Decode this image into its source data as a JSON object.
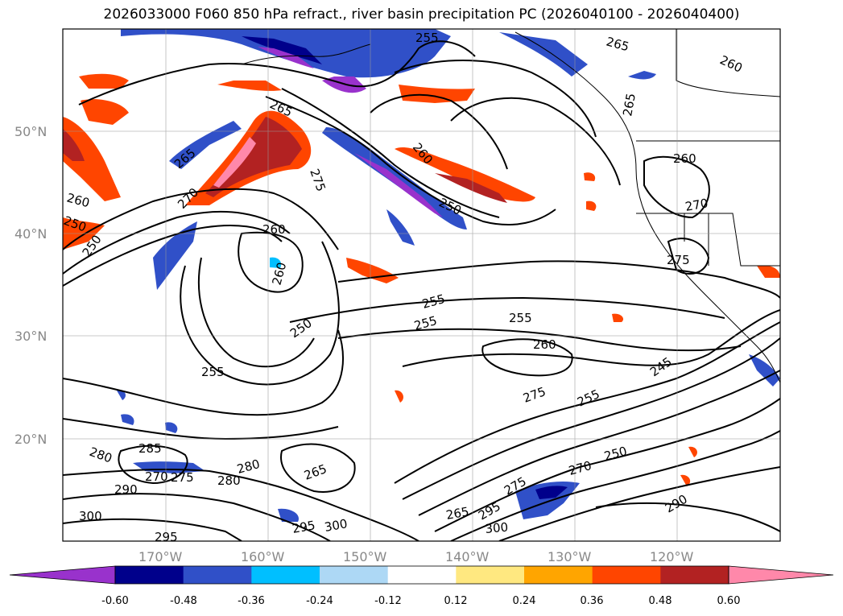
{
  "title": "2026033000 F060 850 hPa refract., river basin precipitation PC (2026040100 - 2026040400)",
  "lat_ticks": [
    "50°N",
    "40°N",
    "30°N",
    "20°N"
  ],
  "lon_ticks": [
    "170°W",
    "160°W",
    "150°W",
    "140°W",
    "130°W",
    "120°W"
  ],
  "contour_labels": [
    "255",
    "265",
    "260",
    "265",
    "265",
    "270",
    "275",
    "260",
    "250",
    "260",
    "250",
    "265",
    "260",
    "270",
    "275",
    "260",
    "255",
    "255",
    "255",
    "260",
    "250",
    "255",
    "245",
    "275",
    "255",
    "285",
    "280",
    "280",
    "290",
    "270",
    "275",
    "280",
    "265",
    "295",
    "300",
    "265",
    "295",
    "300",
    "270",
    "250",
    "290",
    "300",
    "295",
    "260",
    "250",
    "275"
  ],
  "colorbar": {
    "ticks": [
      "-0.60",
      "-0.48",
      "-0.36",
      "-0.24",
      "-0.12",
      "0.12",
      "0.24",
      "0.36",
      "0.48",
      "0.60"
    ],
    "colors": [
      "#9932cc",
      "#00008b",
      "#3050c8",
      "#00bfff",
      "#add8f5",
      "#ffffff",
      "#ffe880",
      "#ffa500",
      "#ff4500",
      "#b22222",
      "#ff88aa"
    ]
  }
}
